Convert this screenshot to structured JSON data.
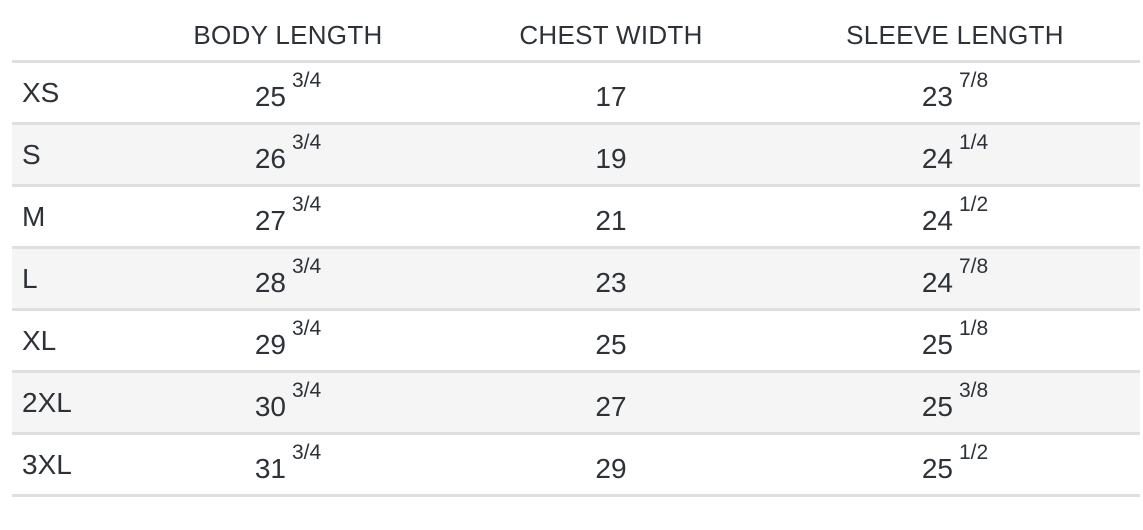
{
  "headers": [
    "",
    "BODY LENGTH",
    "CHEST WIDTH",
    "SLEEVE LENGTH"
  ],
  "rows": [
    {
      "size": "XS",
      "body": {
        "whole": "25",
        "frac": "3/4"
      },
      "chest": "17",
      "sleeve": {
        "whole": "23",
        "frac": "7/8"
      }
    },
    {
      "size": "S",
      "body": {
        "whole": "26",
        "frac": "3/4"
      },
      "chest": "19",
      "sleeve": {
        "whole": "24",
        "frac": "1/4"
      }
    },
    {
      "size": "M",
      "body": {
        "whole": "27",
        "frac": "3/4"
      },
      "chest": "21",
      "sleeve": {
        "whole": "24",
        "frac": "1/2"
      }
    },
    {
      "size": "L",
      "body": {
        "whole": "28",
        "frac": "3/4"
      },
      "chest": "23",
      "sleeve": {
        "whole": "24",
        "frac": "7/8"
      }
    },
    {
      "size": "XL",
      "body": {
        "whole": "29",
        "frac": "3/4"
      },
      "chest": "25",
      "sleeve": {
        "whole": "25",
        "frac": "1/8"
      }
    },
    {
      "size": "2XL",
      "body": {
        "whole": "30",
        "frac": "3/4"
      },
      "chest": "27",
      "sleeve": {
        "whole": "25",
        "frac": "3/8"
      }
    },
    {
      "size": "3XL",
      "body": {
        "whole": "31",
        "frac": "3/4"
      },
      "chest": "29",
      "sleeve": {
        "whole": "25",
        "frac": "1/2"
      }
    }
  ],
  "colors": {
    "text": "#2d3238",
    "stripe": "#f5f5f5",
    "border": "#dedfe0"
  }
}
